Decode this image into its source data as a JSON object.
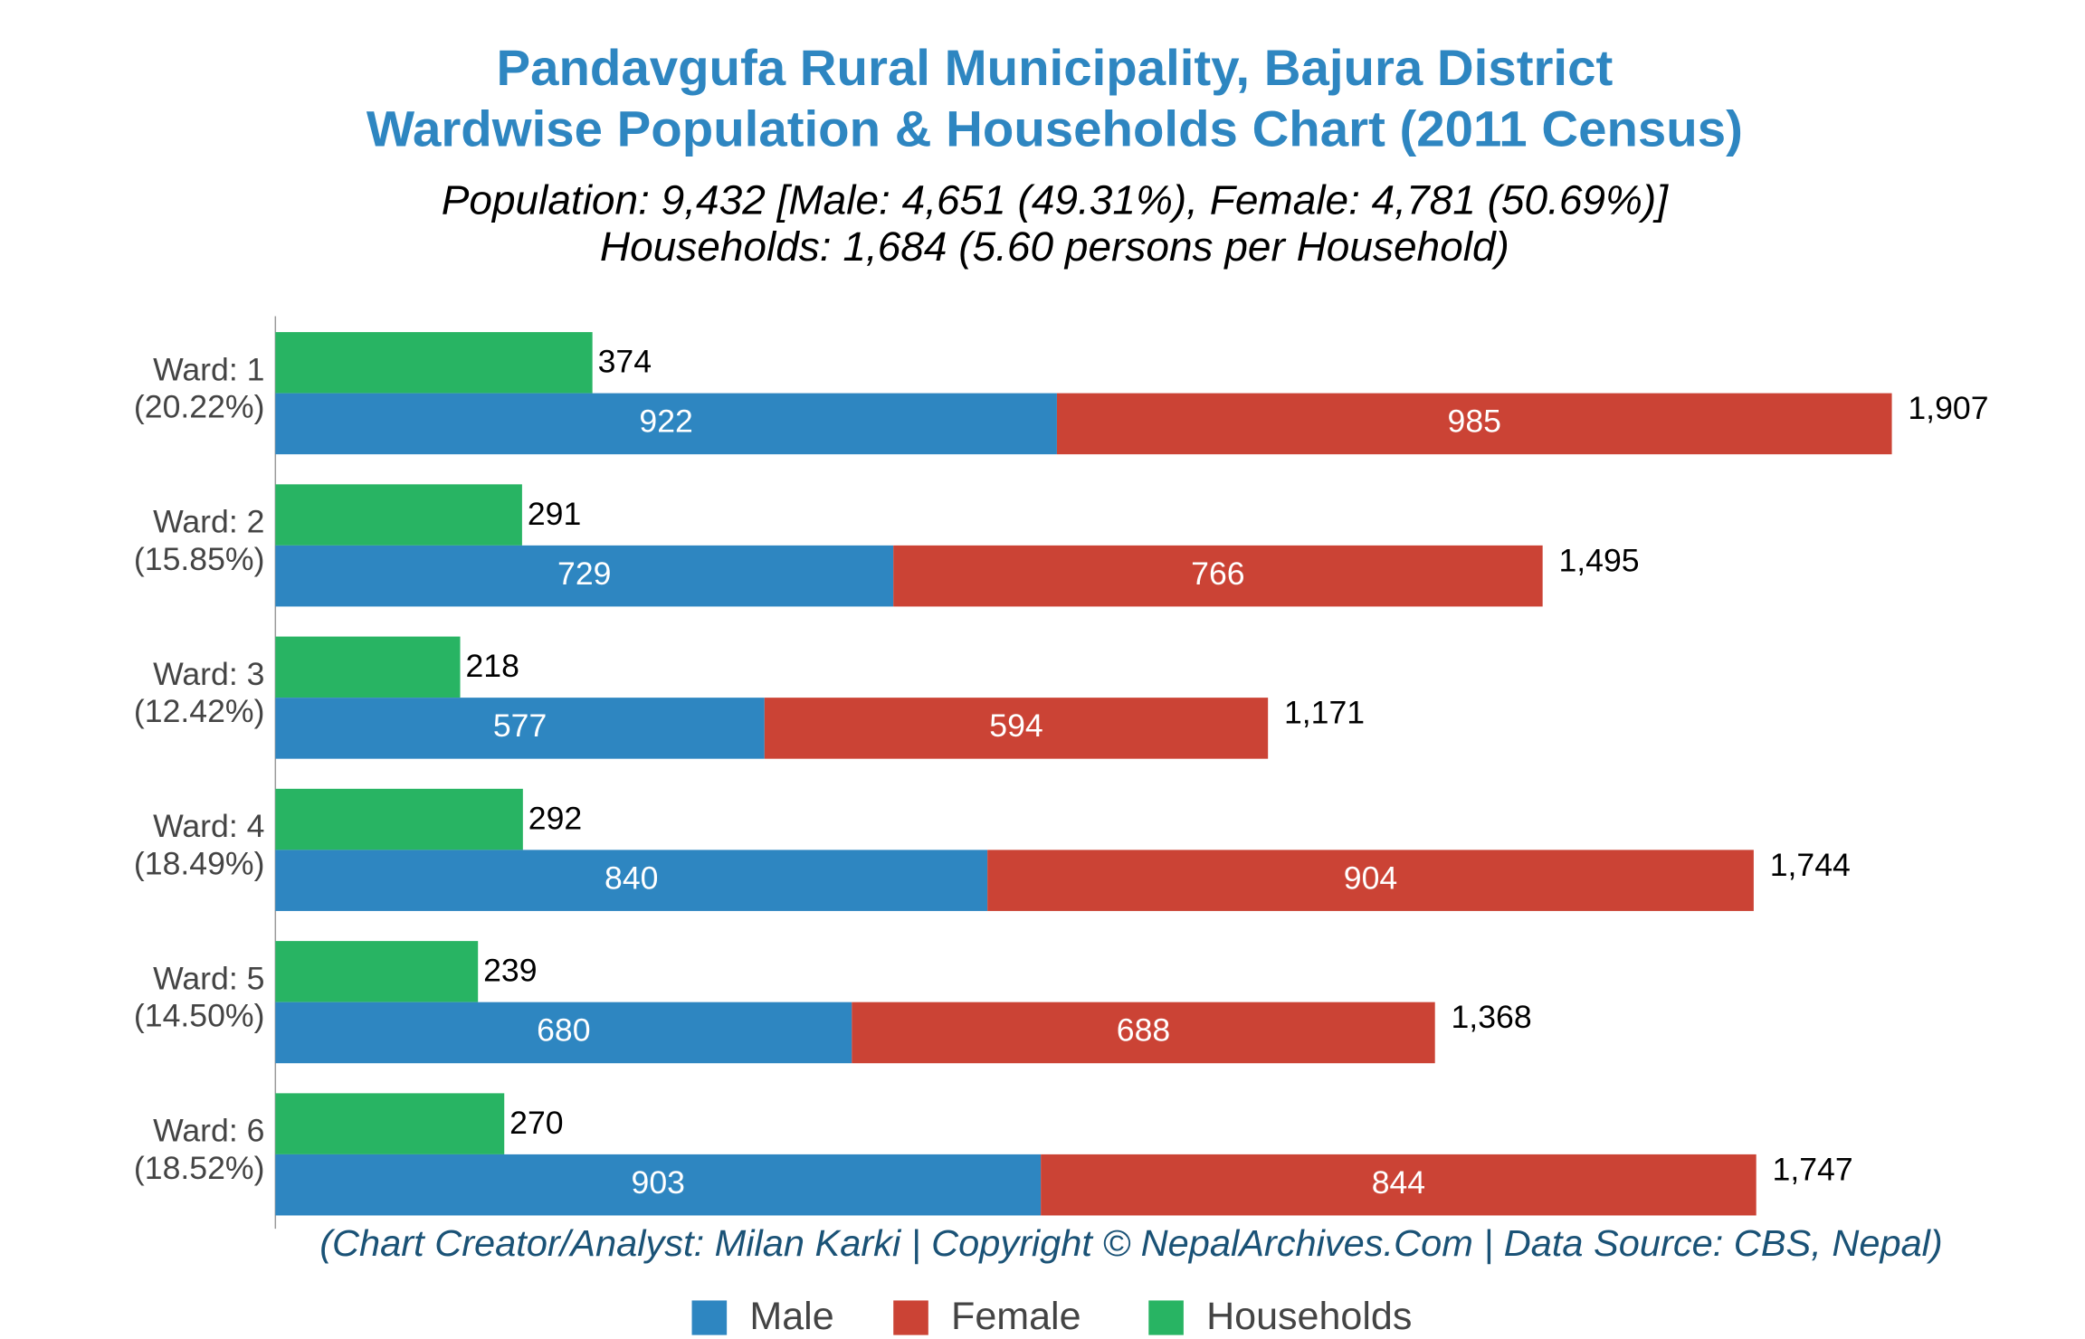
{
  "chart_data": {
    "type": "bar",
    "title": "Pandavgufa Rural Municipality, Bajura District",
    "title_line2": "Wardwise Population & Households Chart (2011 Census)",
    "subtitle": "Population: 9,432 [Male: 4,651 (49.31%), Female: 4,781 (50.69%)]",
    "subtitle_line2": "Households: 1,684 (5.60 persons per Household)",
    "footer": "(Chart Creator/Analyst: Milan Karki | Copyright © NepalArchives.Com | Data Source: CBS, Nepal)",
    "categories": [
      "Ward: 1",
      "Ward: 2",
      "Ward: 3",
      "Ward: 4",
      "Ward: 5",
      "Ward: 6"
    ],
    "category_shares": [
      "(20.22%)",
      "(15.85%)",
      "(12.42%)",
      "(18.49%)",
      "(14.50%)",
      "(18.52%)"
    ],
    "series": [
      {
        "name": "Male",
        "color": "#2e86c1",
        "values": [
          922,
          729,
          577,
          840,
          680,
          903
        ]
      },
      {
        "name": "Female",
        "color": "#cb4335",
        "values": [
          985,
          766,
          594,
          904,
          688,
          844
        ]
      },
      {
        "name": "Households",
        "color": "#28b463",
        "values": [
          374,
          291,
          218,
          292,
          239,
          270
        ]
      }
    ],
    "totals": [
      1907,
      1495,
      1171,
      1744,
      1368,
      1747
    ],
    "total_labels": [
      "1,907",
      "1,495",
      "1,171",
      "1,744",
      "1,368",
      "1,747"
    ],
    "xlim": [
      0,
      2100
    ]
  }
}
